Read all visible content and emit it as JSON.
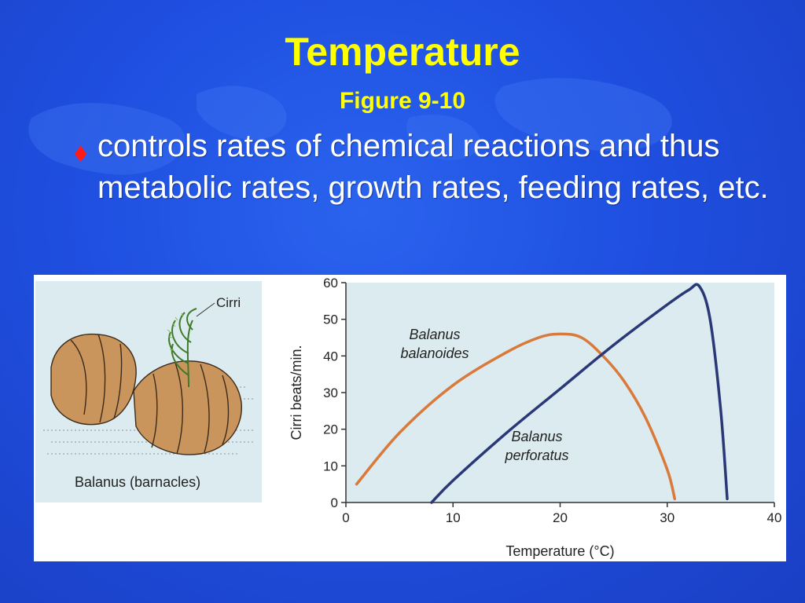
{
  "slide": {
    "title": "Temperature",
    "subtitle": "Figure 9-10",
    "bullet_text": "controls rates of chemical reactions and thus metabolic rates, growth rates, feeding rates, etc."
  },
  "illustration": {
    "caption": "Balanus (barnacles)",
    "cirri_label": "Cirri"
  },
  "colors": {
    "background": "#1f4fe0",
    "title": "#ffff00",
    "bullet": "#ff1a1a",
    "series_balanoides": "#d9793a",
    "series_perforatus": "#2a3878",
    "plot_background": "#dcebef"
  },
  "chart_data": {
    "type": "line",
    "xlabel": "Temperature (°C)",
    "ylabel": "Cirri beats/min.",
    "xlim": [
      0,
      40
    ],
    "ylim": [
      0,
      60
    ],
    "xticks": [
      0,
      10,
      20,
      30,
      40
    ],
    "yticks": [
      0,
      10,
      20,
      30,
      40,
      50,
      60
    ],
    "grid": false,
    "series": [
      {
        "name": "Balanus balanoides",
        "label_lines": [
          "Balanus",
          "balanoides"
        ],
        "x": [
          1,
          5,
          10,
          15,
          18,
          20,
          22,
          24,
          26,
          28,
          30,
          30.7
        ],
        "y": [
          5,
          19,
          32,
          41,
          45,
          46,
          45,
          40,
          33,
          23,
          9,
          1
        ]
      },
      {
        "name": "Balanus perforatus",
        "label_lines": [
          "Balanus",
          "perforatus"
        ],
        "x": [
          8,
          10,
          15,
          20,
          25,
          30,
          32,
          33,
          34,
          35,
          35.6
        ],
        "y": [
          0,
          6,
          19,
          31,
          43,
          54,
          58,
          59,
          50,
          25,
          1
        ]
      }
    ]
  }
}
